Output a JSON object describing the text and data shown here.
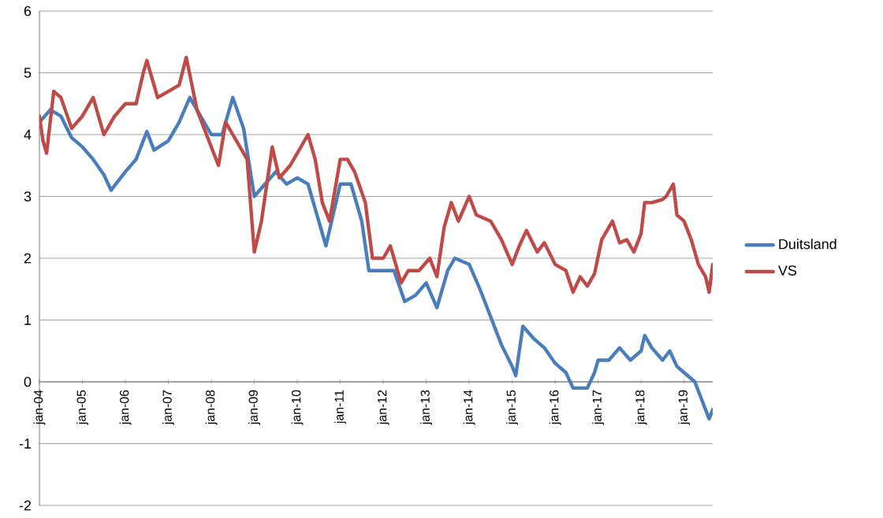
{
  "chart_data": {
    "type": "line",
    "xlim": [
      "2004-01",
      "2019-09"
    ],
    "ylim": [
      -2,
      6
    ],
    "yticks": [
      -2,
      -1,
      0,
      1,
      2,
      3,
      4,
      5,
      6
    ],
    "xticks": [
      {
        "value": "2004-01",
        "label": "jan-04"
      },
      {
        "value": "2005-01",
        "label": "jan-05"
      },
      {
        "value": "2006-01",
        "label": "jan-06"
      },
      {
        "value": "2007-01",
        "label": "jan-07"
      },
      {
        "value": "2008-01",
        "label": "jan-08"
      },
      {
        "value": "2009-01",
        "label": "jan-09"
      },
      {
        "value": "2010-01",
        "label": "jan-10"
      },
      {
        "value": "2011-01",
        "label": "jan-11"
      },
      {
        "value": "2012-01",
        "label": "jan-12"
      },
      {
        "value": "2013-01",
        "label": "jan-13"
      },
      {
        "value": "2014-01",
        "label": "jan-14"
      },
      {
        "value": "2015-01",
        "label": "jan-15"
      },
      {
        "value": "2016-01",
        "label": "jan-16"
      },
      {
        "value": "2017-01",
        "label": "jan-17"
      },
      {
        "value": "2018-01",
        "label": "jan-18"
      },
      {
        "value": "2019-01",
        "label": "jan-19"
      }
    ],
    "grid": "y",
    "legend": "right",
    "marker": "none",
    "line_style": "solid",
    "series": [
      {
        "name": "Duitsland",
        "color": "#4a7ebb",
        "x": [
          "2004-01",
          "2004-04",
          "2004-07",
          "2004-10",
          "2005-01",
          "2005-04",
          "2005-07",
          "2005-09",
          "2006-01",
          "2006-04",
          "2006-07",
          "2006-09",
          "2007-01",
          "2007-04",
          "2007-07",
          "2007-10",
          "2008-01",
          "2008-04",
          "2008-07",
          "2008-10",
          "2009-01",
          "2009-04",
          "2009-07",
          "2009-10",
          "2010-01",
          "2010-04",
          "2010-07",
          "2010-09",
          "2011-01",
          "2011-04",
          "2011-07",
          "2011-09",
          "2012-01",
          "2012-04",
          "2012-07",
          "2012-10",
          "2013-01",
          "2013-04",
          "2013-07",
          "2013-09",
          "2014-01",
          "2014-04",
          "2014-07",
          "2014-10",
          "2015-01",
          "2015-02",
          "2015-04",
          "2015-07",
          "2015-10",
          "2016-01",
          "2016-04",
          "2016-06",
          "2016-10",
          "2016-12",
          "2017-01",
          "2017-04",
          "2017-07",
          "2017-10",
          "2018-01",
          "2018-02",
          "2018-04",
          "2018-07",
          "2018-09",
          "2018-11",
          "2019-01",
          "2019-04",
          "2019-06",
          "2019-08",
          "2019-09"
        ],
        "values": [
          4.2,
          4.4,
          4.3,
          3.95,
          3.8,
          3.6,
          3.35,
          3.1,
          3.4,
          3.6,
          4.05,
          3.75,
          3.9,
          4.2,
          4.6,
          4.3,
          4.0,
          4.0,
          4.6,
          4.1,
          3.0,
          3.2,
          3.4,
          3.2,
          3.3,
          3.2,
          2.6,
          2.2,
          3.2,
          3.2,
          2.6,
          1.8,
          1.8,
          1.8,
          1.3,
          1.4,
          1.6,
          1.2,
          1.8,
          2.0,
          1.9,
          1.5,
          1.05,
          0.6,
          0.25,
          0.1,
          0.9,
          0.7,
          0.55,
          0.3,
          0.15,
          -0.1,
          -0.1,
          0.15,
          0.35,
          0.35,
          0.55,
          0.35,
          0.5,
          0.75,
          0.55,
          0.35,
          0.5,
          0.25,
          0.15,
          0.0,
          -0.3,
          -0.6,
          -0.45
        ]
      },
      {
        "name": "VS",
        "color": "#be4b48",
        "x": [
          "2004-01",
          "2004-02",
          "2004-03",
          "2004-05",
          "2004-07",
          "2004-10",
          "2005-01",
          "2005-04",
          "2005-07",
          "2005-10",
          "2006-01",
          "2006-04",
          "2006-06",
          "2006-07",
          "2006-10",
          "2007-01",
          "2007-04",
          "2007-06",
          "2007-09",
          "2008-01",
          "2008-03",
          "2008-05",
          "2008-07",
          "2008-09",
          "2008-11",
          "2009-01",
          "2009-03",
          "2009-04",
          "2009-06",
          "2009-08",
          "2009-11",
          "2010-01",
          "2010-04",
          "2010-06",
          "2010-08",
          "2010-10",
          "2011-01",
          "2011-03",
          "2011-05",
          "2011-08",
          "2011-10",
          "2012-01",
          "2012-03",
          "2012-06",
          "2012-08",
          "2012-11",
          "2013-02",
          "2013-04",
          "2013-06",
          "2013-08",
          "2013-10",
          "2014-01",
          "2014-03",
          "2014-07",
          "2014-10",
          "2015-01",
          "2015-03",
          "2015-05",
          "2015-08",
          "2015-10",
          "2016-01",
          "2016-04",
          "2016-06",
          "2016-08",
          "2016-10",
          "2016-12",
          "2017-02",
          "2017-03",
          "2017-05",
          "2017-07",
          "2017-09",
          "2017-11",
          "2018-01",
          "2018-02",
          "2018-04",
          "2018-07",
          "2018-08",
          "2018-10",
          "2018-11",
          "2019-01",
          "2019-03",
          "2019-05",
          "2019-07",
          "2019-08",
          "2019-09"
        ],
        "values": [
          4.3,
          3.9,
          3.7,
          4.7,
          4.6,
          4.1,
          4.3,
          4.6,
          4.0,
          4.3,
          4.5,
          4.5,
          5.0,
          5.2,
          4.6,
          4.7,
          4.8,
          5.25,
          4.4,
          3.8,
          3.5,
          4.2,
          4.0,
          3.8,
          3.6,
          2.1,
          2.6,
          3.0,
          3.8,
          3.3,
          3.5,
          3.7,
          4.0,
          3.6,
          2.9,
          2.6,
          3.6,
          3.6,
          3.4,
          2.9,
          2.0,
          2.0,
          2.2,
          1.6,
          1.8,
          1.8,
          2.0,
          1.7,
          2.5,
          2.9,
          2.6,
          3.0,
          2.7,
          2.6,
          2.3,
          1.9,
          2.2,
          2.45,
          2.1,
          2.25,
          1.9,
          1.8,
          1.45,
          1.7,
          1.55,
          1.75,
          2.3,
          2.4,
          2.6,
          2.25,
          2.3,
          2.1,
          2.4,
          2.9,
          2.9,
          2.95,
          3.0,
          3.2,
          2.7,
          2.6,
          2.3,
          1.9,
          1.7,
          1.45,
          1.9
        ]
      }
    ]
  }
}
